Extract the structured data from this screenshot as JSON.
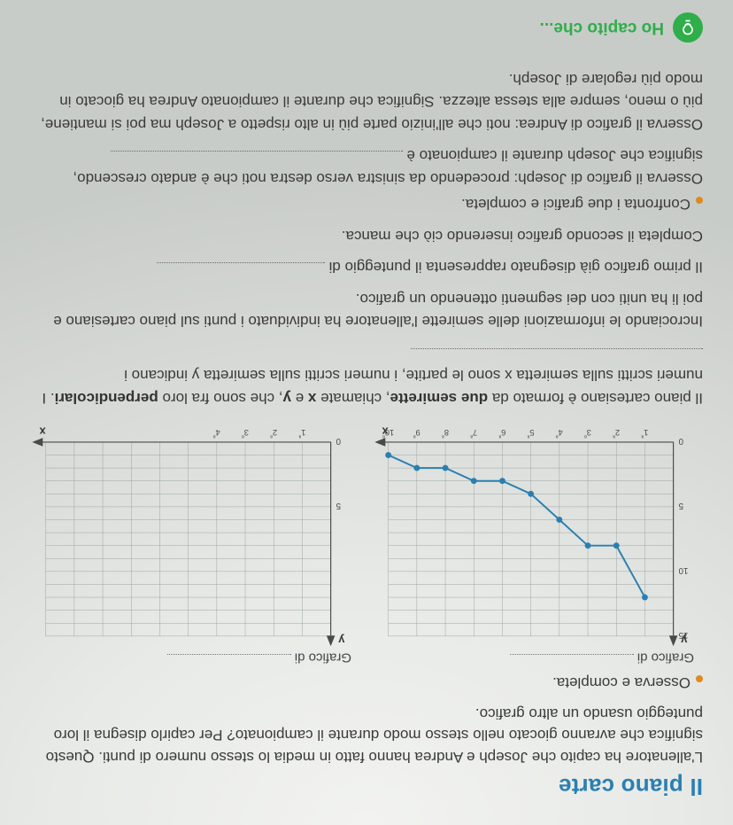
{
  "heading_cut": "Il piano carte",
  "intro": "L'allenatore ha capito che Joseph e Andrea hanno fatto in media lo stesso numero di punti. Questo significa che avranno giocato nello stesso modo durante il campionato? Per capirlo disegna il loro punteggio usando un altro grafico.",
  "observe_prompt": "Osserva e completa.",
  "left_chart": {
    "title_prefix": "Grafico di",
    "title_blank": true,
    "y_label": "y",
    "x_label": "x",
    "x_ticks": [
      "1ª",
      "2ª",
      "3ª",
      "4ª",
      "5ª",
      "6ª",
      "7ª",
      "8ª",
      "9ª",
      "10ª"
    ],
    "y_ticks": [
      0,
      5,
      10,
      15
    ],
    "ylim": [
      0,
      15
    ],
    "xlim": [
      0,
      10
    ],
    "grid_color": "#9aa6a0",
    "line_color": "#2b7fb0",
    "points": [
      [
        1,
        12
      ],
      [
        2,
        8
      ],
      [
        3,
        8
      ],
      [
        4,
        6
      ],
      [
        5,
        4
      ],
      [
        6,
        3
      ],
      [
        7,
        3
      ],
      [
        8,
        2
      ],
      [
        9,
        2
      ],
      [
        10,
        1
      ]
    ]
  },
  "right_chart": {
    "title_prefix": "Grafico di",
    "title_blank": true,
    "y_label": "y",
    "x_label": "x",
    "x_ticks": [
      "1ª",
      "2ª",
      "3ª",
      "4ª"
    ],
    "y_ticks": [
      0,
      5
    ],
    "ylim": [
      0,
      15
    ],
    "xlim": [
      0,
      10
    ],
    "grid_color": "#9aa6a0",
    "line_color": "#2b7fb0",
    "points": []
  },
  "para1_a": "Il piano cartesiano è formato da ",
  "para1_b": "due semirette",
  "para1_c": ", chiamate ",
  "para1_d": "x",
  "para1_e": " e ",
  "para1_f": "y",
  "para1_g": ", che sono fra loro ",
  "para1_h": "perpendicolari",
  "para1_i": ". I numeri scritti sulla semiretta x sono le partite, i numeri scritti sulla semiretta y indicano i ",
  "para2": "Incrociando le informazioni delle semirette l'allenatore ha individuato i punti sul piano cartesiano e poi li ha uniti con dei segmenti ottenendo un grafico.",
  "para3_a": "Il primo grafico già disegnato rappresenta il punteggio di ",
  "para4": "Completa il secondo grafico inserendo ciò che manca.",
  "confront_prompt": "Confronta i due grafici e completa.",
  "para5_a": "Osserva il grafico di Joseph: procedendo da sinistra verso destra noti che è andato crescendo, significa che Joseph durante il campionato è ",
  "para6": "Osserva il grafico di Andrea: noti che all'inizio parte più in alto rispetto a Joseph ma poi si mantiene, più o meno, sempre alla stessa altezza. Significa che durante il campionato Andrea ha giocato in modo più regolare di Joseph.",
  "footer_text": "Ho capito che..."
}
